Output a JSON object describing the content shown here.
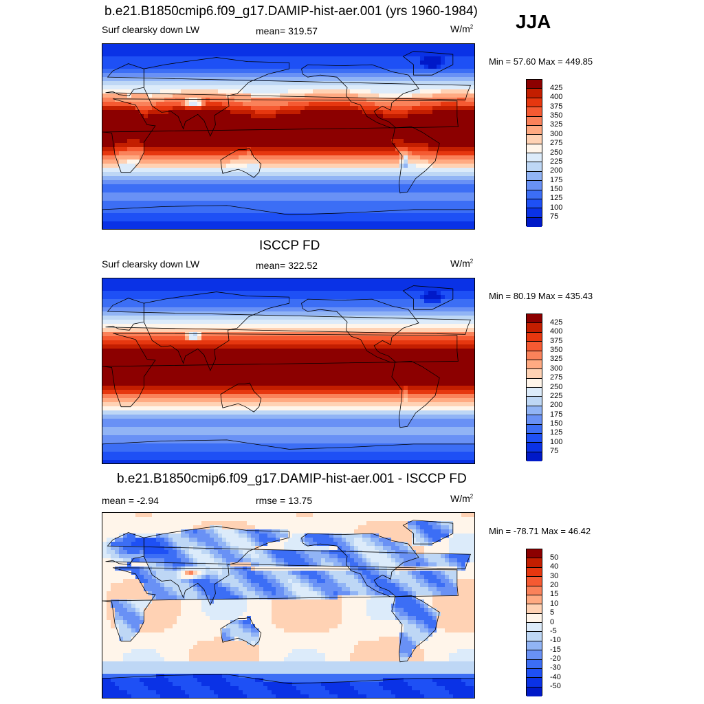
{
  "season": "JJA",
  "units_base": "W/m",
  "units_exp": "2",
  "panels": [
    {
      "title": "b.e21.B1850cmip6.f09_g17.DAMIP-hist-aer.001 (yrs 1960-1984)",
      "left_label": "Surf clearsky down LW",
      "center_label": "mean= 319.57",
      "minmax": "Min =  57.60 Max = 449.85",
      "colorbar_labels": [
        "425",
        "400",
        "375",
        "350",
        "325",
        "300",
        "275",
        "250",
        "225",
        "200",
        "175",
        "150",
        "125",
        "100",
        "75"
      ],
      "field": "model"
    },
    {
      "title": "ISCCP FD",
      "left_label": "Surf clearsky down LW",
      "center_label": "mean= 322.52",
      "minmax": "Min =  80.19 Max = 435.43",
      "colorbar_labels": [
        "425",
        "400",
        "375",
        "350",
        "325",
        "300",
        "275",
        "250",
        "225",
        "200",
        "175",
        "150",
        "125",
        "100",
        "75"
      ],
      "field": "obs"
    },
    {
      "title": "b.e21.B1850cmip6.f09_g17.DAMIP-hist-aer.001 - ISCCP FD",
      "left_label": "mean =  -2.94",
      "center_label": "rmse =  13.75",
      "minmax": "Min = -78.71 Max =  46.42",
      "colorbar_labels": [
        "50",
        "40",
        "30",
        "20",
        "15",
        "10",
        "5",
        "0",
        "-5",
        "-10",
        "-15",
        "-20",
        "-30",
        "-40",
        "-50"
      ],
      "field": "diff"
    }
  ],
  "colors": {
    "scale": [
      "#000080",
      "#0019c8",
      "#0a32e6",
      "#1e50f5",
      "#3c6ef5",
      "#6991f5",
      "#91b4f5",
      "#bed7f5",
      "#dcebfa",
      "#fff5ea",
      "#ffd2b4",
      "#ffaa82",
      "#fa825a",
      "#f55a32",
      "#e6370f",
      "#c31e00",
      "#8c0000"
    ]
  }
}
